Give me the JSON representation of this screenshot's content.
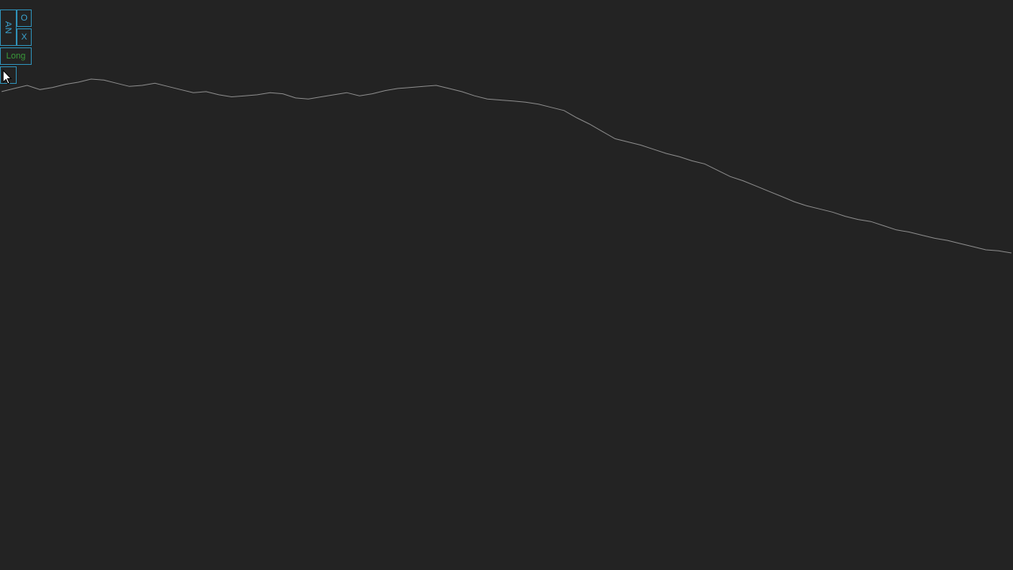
{
  "toolbar": {
    "an_label": "AN",
    "o_label": "O",
    "x_label": "X",
    "long_label": "Long",
    "empty_label": ""
  },
  "colors": {
    "background": "#232323",
    "accent": "#2f8fb5",
    "long": "#3a9a3a",
    "line": "#8a8a8a"
  },
  "chart_data": {
    "type": "line",
    "title": "",
    "xlabel": "",
    "ylabel": "",
    "grid": false,
    "series": [
      {
        "values": [
          155,
          158,
          161,
          157,
          159,
          162,
          164,
          167,
          166,
          163,
          160,
          161,
          163,
          160,
          157,
          154,
          155,
          152,
          150,
          151,
          152,
          154,
          153,
          149,
          148,
          150,
          152,
          154,
          151,
          153,
          156,
          158,
          159,
          160,
          161,
          158,
          155,
          151,
          148,
          147,
          146,
          145,
          143,
          140,
          137,
          130,
          124,
          117,
          110,
          107,
          104,
          100,
          96,
          93,
          89,
          86,
          80,
          74,
          70,
          65,
          60,
          55,
          50,
          46,
          43,
          40,
          36,
          33,
          31,
          27,
          23,
          21,
          18,
          15,
          13,
          10,
          7,
          4,
          3,
          1
        ]
      }
    ]
  }
}
